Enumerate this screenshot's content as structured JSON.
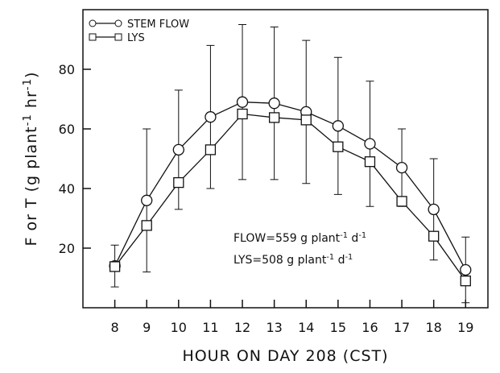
{
  "chart_data": {
    "type": "line",
    "x_label": "HOUR ON DAY 208 (CST)",
    "y_label": [
      "F or T (g plant",
      "-1",
      " hr",
      "-1",
      ")"
    ],
    "x": [
      8,
      9,
      10,
      11,
      12,
      13,
      14,
      15,
      16,
      17,
      18,
      19
    ],
    "series": [
      {
        "name": "STEM FLOW",
        "marker": "circle",
        "color": "#111",
        "values": [
          14,
          36,
          53,
          64,
          69,
          68.6,
          65.7,
          61,
          55,
          47,
          33,
          12.7
        ],
        "errors": [
          7,
          24,
          20,
          24,
          26,
          25.6,
          24,
          23,
          21,
          13,
          17,
          11
        ]
      },
      {
        "name": "LYS",
        "marker": "square",
        "color": "#111",
        "values": [
          13.8,
          27.6,
          42,
          53,
          65,
          63.8,
          63,
          54,
          49,
          35.7,
          24,
          9
        ]
      }
    ],
    "annotations": [
      [
        "FLOW=559 g plant",
        "-1",
        " d",
        "-1"
      ],
      [
        "LYS=508 g plant",
        "-1",
        " d",
        "-1"
      ]
    ],
    "xlim": [
      7,
      19.7
    ],
    "ylim": [
      0,
      100
    ],
    "xticks": [
      8,
      9,
      10,
      11,
      12,
      13,
      14,
      15,
      16,
      17,
      18,
      19
    ],
    "yticks": [
      20,
      40,
      60,
      80
    ]
  }
}
